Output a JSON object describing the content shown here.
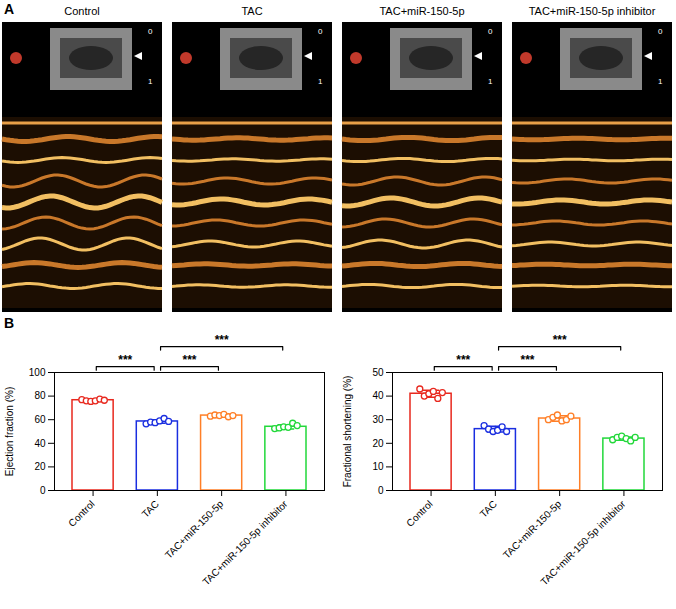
{
  "image_panel": {
    "label": "A",
    "titles": [
      "Control",
      "TAC",
      "TAC+miR-150-5p",
      "TAC+miR-150-5p inhibitor"
    ],
    "scale_labels": [
      "0",
      "1"
    ]
  },
  "chart_panel_label": "B",
  "chart_data": [
    {
      "type": "bar",
      "ylabel": "Ejection fraction (%)",
      "categories": [
        "Control",
        "TAC",
        "TAC+miR-150-5p",
        "TAC+miR-150-5p inhibitor"
      ],
      "values": [
        76.5,
        58.5,
        63.5,
        54
      ],
      "errors": [
        0.8,
        1.5,
        0.7,
        1.8
      ],
      "points": [
        [
          77,
          76,
          75.5,
          76,
          77.5,
          76.5
        ],
        [
          56.5,
          58,
          57.5,
          59,
          61,
          58.5
        ],
        [
          63,
          64,
          63.5,
          64.5,
          62.5,
          63.5
        ],
        [
          52.5,
          53,
          54,
          53.5,
          57,
          55
        ]
      ],
      "colors": [
        "#e8281e",
        "#1a2ee0",
        "#ff7f27",
        "#22d83a"
      ],
      "ylim": [
        0,
        100
      ],
      "yticks": [
        0,
        20,
        40,
        60,
        80,
        100
      ],
      "comparisons": [
        {
          "from": "Control",
          "to": "TAC",
          "label": "***"
        },
        {
          "from": "TAC",
          "to": "TAC+miR-150-5p",
          "label": "***"
        },
        {
          "from": "TAC",
          "to": "TAC+miR-150-5p inhibitor",
          "label": "***"
        }
      ]
    },
    {
      "type": "bar",
      "ylabel": "Fractional shortening (%)",
      "categories": [
        "Control",
        "TAC",
        "TAC+miR-150-5p",
        "TAC+miR-150-5p inhibitor"
      ],
      "values": [
        41,
        26,
        30.5,
        22
      ],
      "errors": [
        1.5,
        1.2,
        1.2,
        0.7
      ],
      "points": [
        [
          43,
          40,
          41,
          42,
          39,
          41.5
        ],
        [
          27.5,
          26,
          25,
          25.5,
          27,
          25
        ],
        [
          30,
          31,
          32,
          29.5,
          30,
          31.5
        ],
        [
          21.5,
          22.5,
          23,
          22,
          21,
          22.5
        ]
      ],
      "colors": [
        "#e8281e",
        "#1a2ee0",
        "#ff7f27",
        "#22d83a"
      ],
      "ylim": [
        0,
        50
      ],
      "yticks": [
        0,
        10,
        20,
        30,
        40,
        50
      ],
      "comparisons": [
        {
          "from": "Control",
          "to": "TAC",
          "label": "***"
        },
        {
          "from": "TAC",
          "to": "TAC+miR-150-5p",
          "label": "***"
        },
        {
          "from": "TAC",
          "to": "TAC+miR-150-5p inhibitor",
          "label": "***"
        }
      ]
    }
  ]
}
